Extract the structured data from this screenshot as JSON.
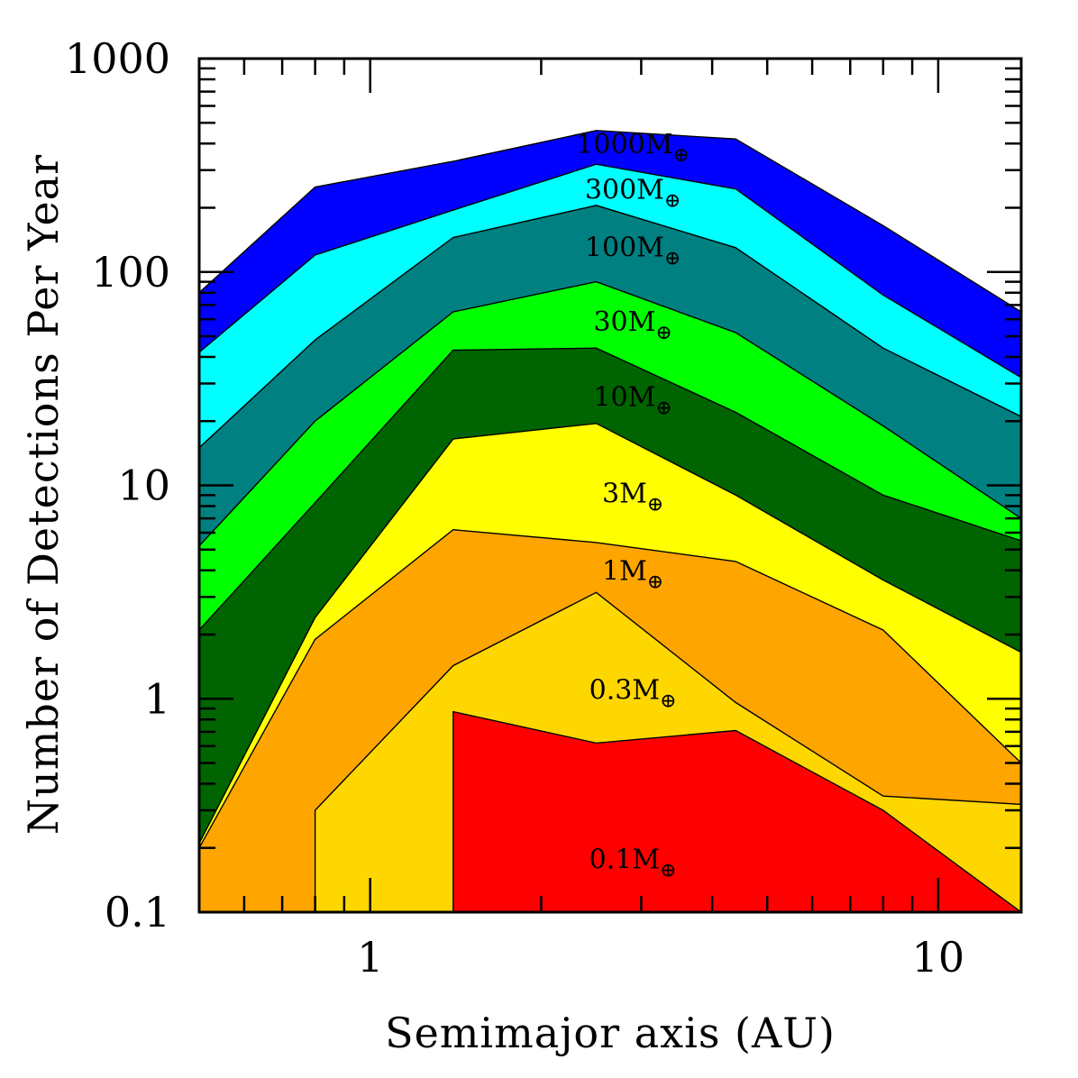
{
  "chart_data": {
    "type": "area",
    "title": "",
    "xlabel": "Semimajor axis (AU)",
    "ylabel": "Number of Detections Per Year",
    "x_scale": "log",
    "y_scale": "log",
    "xlim": [
      0.5,
      14
    ],
    "ylim": [
      0.1,
      1000
    ],
    "x_ticks": [
      {
        "value": 1,
        "label": "1"
      },
      {
        "value": 10,
        "label": "10"
      }
    ],
    "y_ticks": [
      {
        "value": 0.1,
        "label": "0.1"
      },
      {
        "value": 1,
        "label": "1"
      },
      {
        "value": 10,
        "label": "10"
      },
      {
        "value": 100,
        "label": "100"
      },
      {
        "value": 1000,
        "label": "1000"
      }
    ],
    "grid": false,
    "series": [
      {
        "name": "1000M",
        "label_value": 1000,
        "label_at": [
          2.9,
          360
        ],
        "color": "#0000ff",
        "x": [
          0.5,
          0.8,
          1.4,
          2.5,
          4.4,
          8.0,
          14
        ],
        "y": [
          80,
          250,
          330,
          460,
          420,
          165,
          65
        ]
      },
      {
        "name": "300M",
        "label_value": 300,
        "label_at": [
          2.9,
          220
        ],
        "color": "#00ffff",
        "x": [
          0.5,
          0.8,
          1.4,
          2.5,
          4.4,
          8.0,
          14
        ],
        "y": [
          42,
          120,
          195,
          320,
          245,
          78,
          32
        ]
      },
      {
        "name": "100M",
        "label_value": 100,
        "label_at": [
          2.9,
          118
        ],
        "color": "#008080",
        "x": [
          0.5,
          0.8,
          1.4,
          2.5,
          4.4,
          8.0,
          14
        ],
        "y": [
          15,
          48,
          145,
          205,
          130,
          44,
          21
        ]
      },
      {
        "name": "30M",
        "label_value": 30,
        "label_at": [
          2.9,
          53
        ],
        "color": "#00ff00",
        "x": [
          0.5,
          0.8,
          1.4,
          2.5,
          4.4,
          8.0,
          14
        ],
        "y": [
          5.2,
          20,
          65,
          90,
          52,
          19,
          7
        ]
      },
      {
        "name": "10M",
        "label_value": 10,
        "label_at": [
          2.9,
          23.5
        ],
        "color": "#006400",
        "x": [
          0.5,
          0.8,
          1.4,
          2.5,
          4.4,
          8.0,
          14
        ],
        "y": [
          2.1,
          8.3,
          43,
          44,
          22,
          9,
          5.5
        ]
      },
      {
        "name": "3M",
        "label_value": 3,
        "label_at": [
          2.9,
          8.3
        ],
        "color": "#ffff00",
        "x": [
          0.5,
          0.8,
          1.4,
          2.5,
          4.4,
          8.0,
          14
        ],
        "y": [
          0.21,
          2.4,
          16.5,
          19.5,
          9,
          3.6,
          1.65
        ]
      },
      {
        "name": "1M",
        "label_value": 1,
        "label_at": [
          2.9,
          3.6
        ],
        "color": "#ffa500",
        "x": [
          0.5,
          0.8,
          1.4,
          2.5,
          4.4,
          8.0,
          14
        ],
        "y": [
          0.2,
          1.9,
          6.2,
          5.4,
          4.4,
          2.1,
          0.5
        ]
      },
      {
        "name": "0.3M",
        "label_value": 0.3,
        "label_at": [
          2.9,
          1.0
        ],
        "color": "#ffd700",
        "x": [
          0.8,
          0.8,
          1.4,
          2.5,
          4.4,
          8.0,
          14
        ],
        "y": [
          0.1,
          0.3,
          1.43,
          3.15,
          0.96,
          0.35,
          0.32
        ]
      },
      {
        "name": "0.1M",
        "label_value": 0.1,
        "label_at": [
          2.9,
          0.16
        ],
        "color": "#ff0000",
        "x": [
          1.4,
          1.4,
          2.5,
          4.4,
          8.0,
          14
        ],
        "y": [
          0.1,
          0.87,
          0.62,
          0.71,
          0.3,
          0.1
        ]
      }
    ],
    "band_labels": [
      {
        "number": "1000M",
        "symbol": "⊕"
      },
      {
        "number": "300M",
        "symbol": "⊕"
      },
      {
        "number": "100M",
        "symbol": "⊕"
      },
      {
        "number": "30M",
        "symbol": "⊕"
      },
      {
        "number": "10M",
        "symbol": "⊕"
      },
      {
        "number": "3M",
        "symbol": "⊕"
      },
      {
        "number": "1M",
        "symbol": "⊕"
      },
      {
        "number": "0.3M",
        "symbol": "⊕"
      },
      {
        "number": "0.1M",
        "symbol": "⊕"
      }
    ]
  }
}
